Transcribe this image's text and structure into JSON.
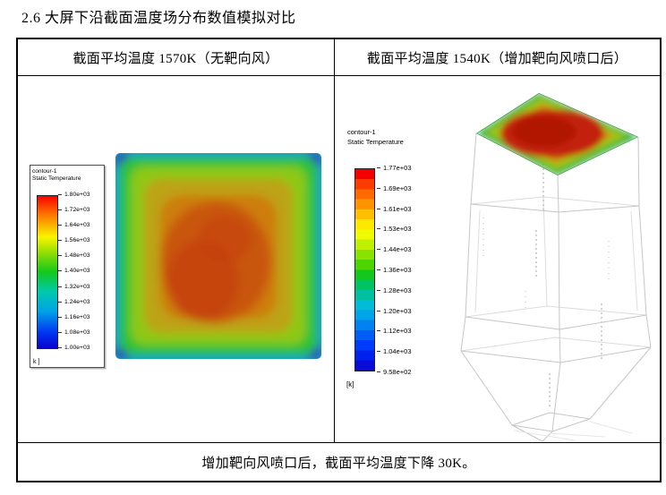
{
  "doc": {
    "section_title": "2.6 大屏下沿截面温度场分布数值模拟对比"
  },
  "table": {
    "header_left": "截面平均温度 1570K（无靶向风）",
    "header_right": "截面平均温度 1540K（增加靶向风喷口后）",
    "footer_note": "增加靶向风喷口后，截面平均温度下降 30K。"
  },
  "left_panel": {
    "legend": {
      "name": "contour-1",
      "variable": "Static Temperature",
      "unit": "k ]",
      "ticks": [
        "1.80e+03",
        "1.72e+03",
        "1.64e+03",
        "1.56e+03",
        "1.48e+03",
        "1.40e+03",
        "1.32e+03",
        "1.24e+03",
        "1.16e+03",
        "1.08e+03",
        "1.00e+03"
      ]
    }
  },
  "right_panel": {
    "legend": {
      "name": "contour-1",
      "variable": "Static Temperature",
      "unit": "[k]",
      "ticks": [
        "1.77e+03",
        "1.69e+03",
        "1.61e+03",
        "1.53e+03",
        "1.44e+03",
        "1.36e+03",
        "1.28e+03",
        "1.20e+03",
        "1.12e+03",
        "1.04e+03",
        "9.58e+02"
      ]
    }
  },
  "chart_data": [
    {
      "type": "heatmap",
      "title": "截面平均温度 1570K（无靶向风）",
      "variable": "Static Temperature",
      "unit": "k",
      "colorbar_ticks_K": [
        1800,
        1720,
        1640,
        1560,
        1480,
        1400,
        1320,
        1240,
        1160,
        1080,
        1000
      ],
      "colorbar_range_K": [
        1000,
        1800
      ],
      "average_temperature_K": 1570,
      "pattern": "square cross-section; blue corners, green-cyan edges, orange-red center",
      "legend_position": "left, boxed"
    },
    {
      "type": "heatmap",
      "title": "截面平均温度 1540K（增加靶向风喷口后）",
      "variable": "Static Temperature",
      "unit": "k",
      "colorbar_ticks_K": [
        1770,
        1690,
        1610,
        1530,
        1440,
        1360,
        1280,
        1200,
        1120,
        1040,
        958
      ],
      "colorbar_range_K": [
        958,
        1770
      ],
      "average_temperature_K": 1540,
      "pattern": "top cross-section plane of 3D furnace wireframe; green edges, red center",
      "legend_position": "left, unboxed"
    }
  ],
  "colors": {
    "table_border": "#000000",
    "wireframe": "#c6c6c6",
    "contour_center_red": "#c1330a",
    "contour_edge_green": "#2cbb3c",
    "contour_corner_blue": "#2a2ab8"
  }
}
